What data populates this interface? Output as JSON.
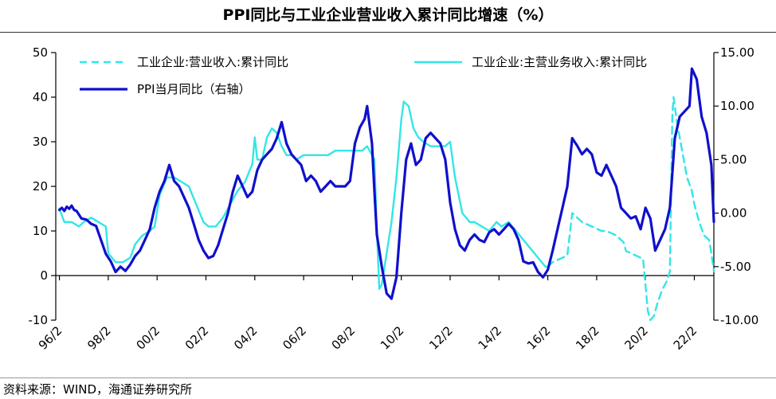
{
  "title": "PPI同比与工业企业营业收入累计同比增速（%）",
  "source": "资料来源：WIND，海通证券研究所",
  "chart_data": {
    "type": "line",
    "x_tick_labels": [
      "96/2",
      "98/2",
      "00/2",
      "02/2",
      "04/2",
      "06/2",
      "08/2",
      "10/2",
      "12/2",
      "14/2",
      "16/2",
      "18/2",
      "20/2",
      "22/2"
    ],
    "x_tick_years": [
      1996,
      1998,
      2000,
      2002,
      2004,
      2006,
      2008,
      2010,
      2012,
      2014,
      2016,
      2018,
      2020,
      2022
    ],
    "xlim": [
      1995.85,
      2022.8
    ],
    "ylim_left": [
      -10,
      50
    ],
    "yticks_left": [
      "50",
      "40",
      "30",
      "20",
      "10",
      "0",
      "-10"
    ],
    "ylim_right": [
      -10,
      15
    ],
    "yticks_right": [
      "15.00",
      "10.00",
      "5.00",
      "0.00",
      "-5.00",
      "-10.00"
    ],
    "colors": {
      "cyan": "#33e6e6",
      "blue": "#1010cc"
    },
    "series": [
      {
        "name": "工业企业:营业收入:累计同比",
        "axis": "left",
        "style": "dashed",
        "color": "#33e6e6",
        "x": [
          2016.0,
          2016.2,
          2016.4,
          2016.6,
          2016.8,
          2017.0,
          2017.1,
          2017.2,
          2017.4,
          2017.6,
          2017.8,
          2018.0,
          2018.2,
          2018.4,
          2018.6,
          2018.8,
          2019.0,
          2019.1,
          2019.2,
          2019.4,
          2019.6,
          2019.8,
          2019.9,
          2020.1,
          2020.2,
          2020.35,
          2020.5,
          2020.7,
          2020.9,
          2021.0,
          2021.1,
          2021.15,
          2021.3,
          2021.5,
          2021.7,
          2021.9,
          2022.0,
          2022.2,
          2022.4,
          2022.6,
          2022.7,
          2022.8
        ],
        "values": [
          2,
          3,
          3.5,
          4,
          4.5,
          14,
          13.5,
          13,
          12,
          11.5,
          11,
          10.5,
          10,
          10,
          9.5,
          9,
          8,
          7.5,
          5.5,
          5,
          4.5,
          4,
          3.8,
          -8,
          -10,
          -9,
          -6,
          -3,
          -1,
          1,
          36,
          40,
          34,
          28,
          22,
          19,
          16,
          12,
          9,
          8,
          5,
          1
        ]
      },
      {
        "name": "工业企业:主营业务收入:累计同比",
        "axis": "left",
        "style": "solid",
        "color": "#33e6e6",
        "x": [
          1996.0,
          1996.2,
          1996.5,
          1996.8,
          1997.0,
          1997.3,
          1997.6,
          1997.9,
          1998.0,
          1998.3,
          1998.6,
          1998.9,
          1999.1,
          1999.4,
          1999.7,
          1999.9,
          2000.1,
          2000.4,
          2000.7,
          2001.0,
          2001.3,
          2001.6,
          2001.9,
          2002.1,
          2002.4,
          2002.7,
          2003.0,
          2003.3,
          2003.6,
          2003.9,
          2004.0,
          2004.1,
          2004.3,
          2004.5,
          2004.7,
          2004.9,
          2005.1,
          2005.3,
          2005.5,
          2005.7,
          2006.0,
          2006.2,
          2006.5,
          2006.8,
          2007.0,
          2007.3,
          2007.6,
          2007.9,
          2008.1,
          2008.4,
          2008.6,
          2008.9,
          2009.0,
          2009.1,
          2009.2,
          2009.4,
          2009.6,
          2009.8,
          2010.0,
          2010.1,
          2010.3,
          2010.5,
          2010.7,
          2010.9,
          2011.2,
          2011.5,
          2011.8,
          2012.0,
          2012.2,
          2012.5,
          2012.8,
          2013.0,
          2013.3,
          2013.6,
          2013.9,
          2014.1,
          2014.4,
          2014.7,
          2015.0,
          2015.3,
          2015.6,
          2015.9,
          2016.0
        ],
        "values": [
          15,
          12,
          12,
          11,
          12,
          13,
          12,
          11,
          5,
          3,
          3,
          4,
          7,
          9,
          10,
          11,
          18,
          22,
          22,
          21,
          20,
          16,
          12,
          11,
          11,
          13,
          16,
          19,
          21,
          25,
          31,
          26,
          26,
          31,
          33,
          32,
          29,
          27,
          27,
          26,
          27,
          27,
          27,
          27,
          27,
          28,
          28,
          28,
          28,
          28,
          29,
          26,
          10,
          -3,
          -2,
          5,
          12,
          22,
          35,
          39,
          38,
          33,
          31,
          30,
          29,
          29,
          29,
          30,
          22,
          14,
          12,
          12,
          11,
          10,
          12,
          11,
          12,
          10,
          8,
          6,
          4,
          2,
          2
        ]
      },
      {
        "name": "PPI当月同比（右轴）",
        "axis": "right",
        "style": "solid",
        "color": "#1010cc",
        "x": [
          1996.0,
          1996.1,
          1996.2,
          1996.3,
          1996.4,
          1996.5,
          1996.6,
          1996.7,
          1996.9,
          1997.1,
          1997.3,
          1997.5,
          1997.7,
          1997.9,
          1998.1,
          1998.3,
          1998.5,
          1998.7,
          1998.9,
          1999.1,
          1999.3,
          1999.5,
          1999.7,
          1999.9,
          2000.1,
          2000.3,
          2000.5,
          2000.7,
          2000.9,
          2001.1,
          2001.3,
          2001.5,
          2001.7,
          2001.9,
          2002.1,
          2002.3,
          2002.5,
          2002.7,
          2002.9,
          2003.1,
          2003.3,
          2003.5,
          2003.7,
          2003.9,
          2004.1,
          2004.3,
          2004.5,
          2004.7,
          2004.9,
          2005.1,
          2005.3,
          2005.5,
          2005.7,
          2005.9,
          2006.1,
          2006.3,
          2006.5,
          2006.7,
          2006.9,
          2007.1,
          2007.3,
          2007.5,
          2007.7,
          2007.9,
          2008.1,
          2008.3,
          2008.5,
          2008.6,
          2008.8,
          2008.9,
          2009.0,
          2009.2,
          2009.4,
          2009.6,
          2009.8,
          2010.0,
          2010.2,
          2010.4,
          2010.6,
          2010.8,
          2011.0,
          2011.2,
          2011.4,
          2011.6,
          2011.8,
          2012.0,
          2012.2,
          2012.4,
          2012.6,
          2012.8,
          2013.0,
          2013.2,
          2013.4,
          2013.6,
          2013.8,
          2014.0,
          2014.2,
          2014.4,
          2014.6,
          2014.8,
          2015.0,
          2015.2,
          2015.4,
          2015.6,
          2015.8,
          2016.0,
          2016.2,
          2016.4,
          2016.6,
          2016.8,
          2017.0,
          2017.2,
          2017.4,
          2017.6,
          2017.8,
          2018.0,
          2018.2,
          2018.4,
          2018.6,
          2018.8,
          2019.0,
          2019.2,
          2019.4,
          2019.6,
          2019.8,
          2020.0,
          2020.2,
          2020.4,
          2020.6,
          2020.8,
          2021.0,
          2021.2,
          2021.4,
          2021.6,
          2021.8,
          2021.9,
          2022.1,
          2022.3,
          2022.5,
          2022.7,
          2022.8
        ],
        "values": [
          0.3,
          0.5,
          0.2,
          0.6,
          0.4,
          0.7,
          0.3,
          0.2,
          -0.5,
          -0.6,
          -1.0,
          -1.2,
          -2.5,
          -3.8,
          -4.5,
          -5.5,
          -5.0,
          -5.4,
          -4.8,
          -4.0,
          -3.5,
          -2.5,
          -1.5,
          0.5,
          2.0,
          3.0,
          4.5,
          3.0,
          2.5,
          1.5,
          0.5,
          -1.0,
          -2.5,
          -3.5,
          -4.2,
          -4.0,
          -3.0,
          -1.5,
          0.0,
          2.0,
          3.5,
          2.5,
          1.5,
          2.0,
          4.0,
          5.0,
          5.5,
          6.0,
          7.0,
          8.5,
          6.5,
          5.5,
          5.0,
          4.5,
          3.0,
          3.5,
          3.0,
          2.0,
          2.5,
          3.0,
          2.5,
          2.5,
          2.5,
          3.0,
          6.5,
          8.0,
          8.8,
          10.0,
          6.5,
          2.0,
          -2.0,
          -5.0,
          -7.5,
          -8.0,
          -6.0,
          0.0,
          5.0,
          6.5,
          4.5,
          5.0,
          7.0,
          7.5,
          7.0,
          6.5,
          5.0,
          1.0,
          -1.5,
          -3.0,
          -3.5,
          -2.5,
          -2.0,
          -2.5,
          -2.7,
          -1.8,
          -1.5,
          -2.0,
          -1.5,
          -1.0,
          -1.5,
          -2.5,
          -4.5,
          -4.7,
          -4.6,
          -5.5,
          -6.0,
          -5.3,
          -3.5,
          -1.5,
          0.5,
          2.5,
          7.0,
          6.3,
          5.5,
          6.0,
          5.5,
          3.8,
          3.5,
          4.5,
          3.5,
          2.5,
          0.5,
          0.0,
          -0.5,
          -0.3,
          -1.5,
          0.5,
          -0.5,
          -3.5,
          -2.5,
          -1.5,
          0.5,
          7.0,
          9.0,
          9.5,
          10.0,
          13.5,
          12.5,
          9.0,
          7.5,
          4.5,
          -0.8
        ]
      }
    ]
  }
}
